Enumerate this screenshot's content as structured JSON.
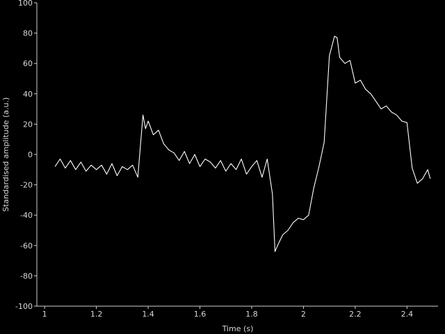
{
  "chart_data": {
    "type": "line",
    "title": "",
    "xlabel": "Time (s)",
    "ylabel": "Standardised amplitude (a.u.)",
    "xlim": [
      0.97,
      2.52
    ],
    "ylim": [
      -100,
      100
    ],
    "x_ticks": [
      1,
      1.2,
      1.4,
      1.6,
      1.8,
      2,
      2.2,
      2.4
    ],
    "x_tick_labels": [
      "1",
      "1.2",
      "1.4",
      "1.6",
      "1.8",
      "2",
      "2.2",
      "2.4"
    ],
    "y_ticks": [
      -100,
      -80,
      -60,
      -40,
      -20,
      0,
      20,
      40,
      60,
      80,
      100
    ],
    "y_tick_labels": [
      "-100",
      "-80",
      "-60",
      "-40",
      "-20",
      "0",
      "20",
      "40",
      "60",
      "80",
      "100"
    ],
    "grid": false,
    "line_color": "#ffffff",
    "background": "#000000",
    "series": [
      {
        "x": [
          1.04,
          1.06,
          1.08,
          1.1,
          1.12,
          1.14,
          1.16,
          1.18,
          1.2,
          1.22,
          1.24,
          1.26,
          1.28,
          1.3,
          1.32,
          1.34,
          1.36,
          1.38,
          1.39,
          1.4,
          1.42,
          1.44,
          1.46,
          1.48,
          1.5,
          1.52,
          1.54,
          1.56,
          1.58,
          1.6,
          1.62,
          1.64,
          1.66,
          1.68,
          1.7,
          1.72,
          1.74,
          1.76,
          1.78,
          1.8,
          1.82,
          1.84,
          1.86,
          1.88,
          1.89,
          1.9,
          1.92,
          1.94,
          1.96,
          1.98,
          2.0,
          2.02,
          2.04,
          2.06,
          2.08,
          2.1,
          2.12,
          2.13,
          2.14,
          2.16,
          2.18,
          2.2,
          2.22,
          2.24,
          2.26,
          2.28,
          2.3,
          2.32,
          2.34,
          2.36,
          2.38,
          2.4,
          2.42,
          2.44,
          2.46,
          2.48,
          2.49
        ],
        "y": [
          -8,
          -3,
          -9,
          -4,
          -10,
          -5,
          -11,
          -7,
          -10,
          -7,
          -13,
          -6,
          -14,
          -8,
          -10,
          -7,
          -15,
          26,
          17,
          22,
          13,
          16,
          7,
          3,
          1,
          -4,
          2,
          -6,
          0,
          -8,
          -3,
          -5,
          -9,
          -4,
          -11,
          -6,
          -10,
          -3,
          -13,
          -8,
          -4,
          -15,
          -3,
          -26,
          -64,
          -60,
          -53,
          -50,
          -45,
          -42,
          -43,
          -40,
          -22,
          -8,
          8,
          65,
          78,
          77,
          64,
          60,
          62,
          47,
          49,
          43,
          40,
          35,
          30,
          32,
          28,
          26,
          22,
          21,
          -9,
          -19,
          -16,
          -10,
          -16
        ]
      }
    ]
  }
}
